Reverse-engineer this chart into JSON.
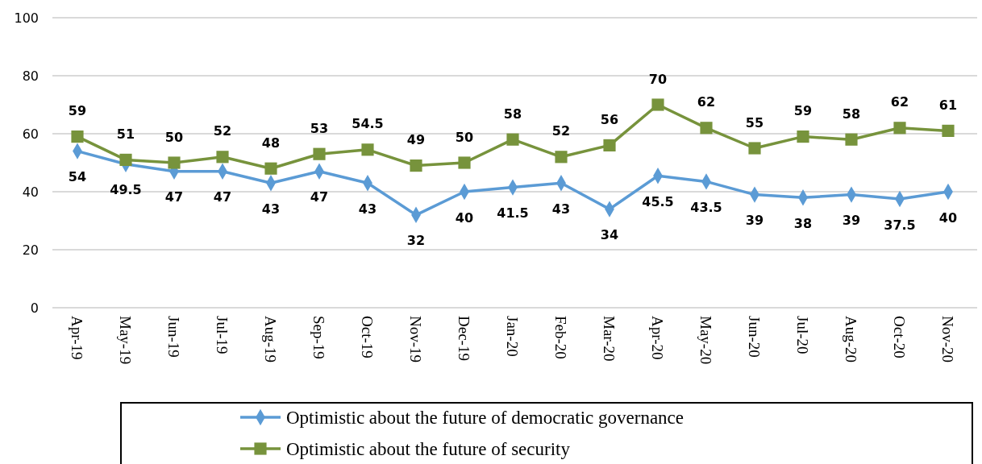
{
  "chart_data": {
    "type": "line",
    "categories": [
      "Apr-19",
      "May-19",
      "Jun-19",
      "Jul-19",
      "Aug-19",
      "Sep-19",
      "Oct-19",
      "Nov-19",
      "Dec-19",
      "Jan-20",
      "Feb-20",
      "Mar-20",
      "Apr-20",
      "May-20",
      "Jun-20",
      "Jul-20",
      "Aug-20",
      "Oct-20",
      "Nov-20"
    ],
    "series": [
      {
        "name": "Optimistic about the future of democratic governance",
        "color": "#5b9bd5",
        "marker": "diamond",
        "values": [
          54,
          49.5,
          47,
          47,
          43,
          47,
          43,
          32,
          40,
          41.5,
          43,
          34,
          45.5,
          43.5,
          39,
          38,
          39,
          37.5,
          40
        ]
      },
      {
        "name": "Optimistic about the future of security",
        "color": "#77933c",
        "marker": "square",
        "values": [
          59,
          51,
          50,
          52,
          48,
          53,
          54.5,
          49,
          50,
          58,
          52,
          56,
          70,
          62,
          55,
          59,
          58,
          62,
          61
        ]
      }
    ],
    "ylim": [
      0,
      100
    ],
    "yticks": [
      0,
      20,
      40,
      60,
      80,
      100
    ],
    "grid": "y",
    "legend": "bottom",
    "data_labels": true
  }
}
